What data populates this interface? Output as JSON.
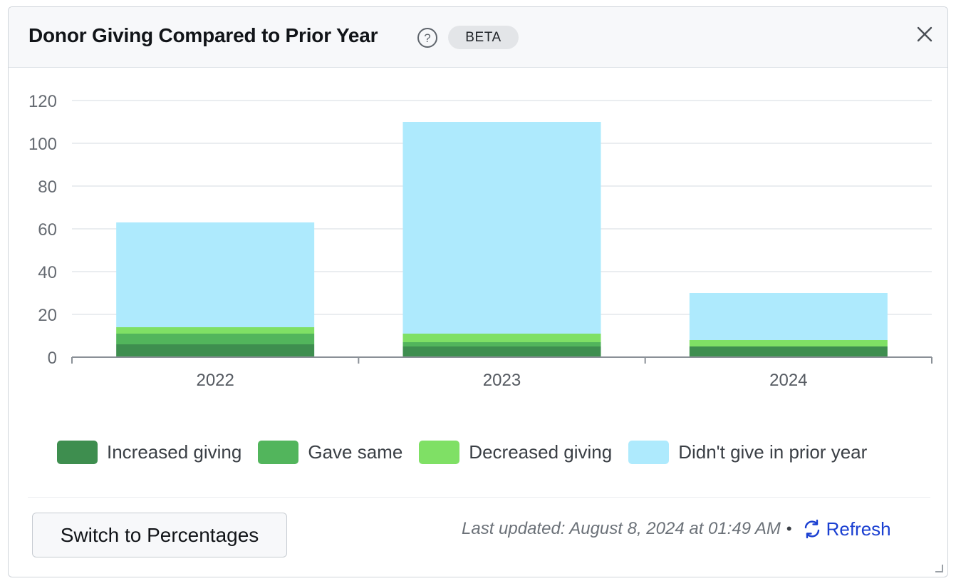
{
  "header": {
    "title": "Donor Giving Compared to Prior Year",
    "badge": "BETA"
  },
  "icons": {
    "help": "help-circle-icon",
    "close": "close-icon",
    "refresh": "refresh-icon"
  },
  "chart_data": {
    "type": "bar",
    "stacked": true,
    "title": "",
    "xlabel": "",
    "ylabel": "",
    "categories": [
      "2022",
      "2023",
      "2024"
    ],
    "series": [
      {
        "name": "Increased giving",
        "color": "#3e8e4f",
        "values": [
          6,
          5,
          5
        ]
      },
      {
        "name": "Gave same",
        "color": "#52b55c",
        "values": [
          5,
          2,
          0
        ]
      },
      {
        "name": "Decreased giving",
        "color": "#7fe065",
        "values": [
          3,
          4,
          3
        ]
      },
      {
        "name": "Didn't give in prior year",
        "color": "#aeeafd",
        "values": [
          49,
          99,
          22
        ]
      }
    ],
    "ylim": [
      0,
      120
    ],
    "yticks": [
      0,
      20,
      40,
      60,
      80,
      100,
      120
    ],
    "grid": true,
    "legend": "bottom"
  },
  "footer": {
    "switch_label": "Switch to Percentages",
    "last_updated": "Last updated: August 8, 2024 at 01:49 AM",
    "separator": "•",
    "refresh_label": "Refresh"
  }
}
